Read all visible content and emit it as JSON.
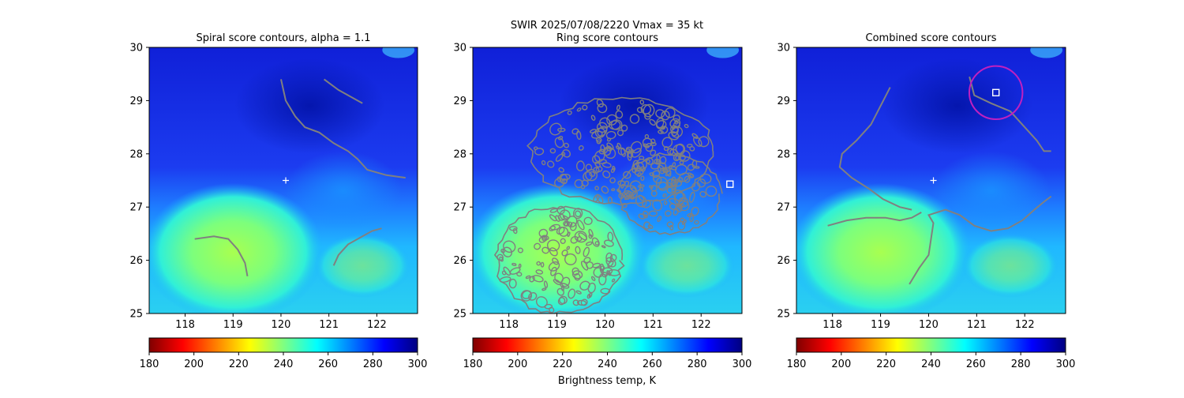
{
  "figure": {
    "suptitle_line1": "SWIR  2025/07/08/2220    Vmax = 35 kt",
    "colorbar_label": "Brightness temp, K"
  },
  "colorbar": {
    "ticks": [
      180,
      200,
      220,
      240,
      260,
      280,
      300
    ],
    "range": [
      180,
      300
    ],
    "colormap": "jet_r",
    "colors": [
      "#800000",
      "#ff0000",
      "#ff8000",
      "#ffff00",
      "#80ff80",
      "#00ffff",
      "#0080ff",
      "#0000ff",
      "#000080"
    ]
  },
  "colors": {
    "contour": "#808080",
    "marker": "#ffffff",
    "circle": "#c020c0"
  },
  "chart_data": [
    {
      "type": "heatmap",
      "title": "Spiral score contours, alpha =  1.1",
      "xlim": [
        117.25,
        122.85
      ],
      "ylim": [
        25,
        30
      ],
      "xticks": [
        118,
        119,
        120,
        121,
        122
      ],
      "yticks": [
        25,
        26,
        27,
        28,
        29,
        30
      ],
      "center_marker": {
        "x": 120.1,
        "y": 27.5,
        "symbol": "+"
      },
      "contours": [
        [
          [
            120.0,
            29.4
          ],
          [
            120.1,
            29.0
          ],
          [
            120.3,
            28.7
          ],
          [
            120.5,
            28.5
          ],
          [
            120.8,
            28.4
          ],
          [
            121.1,
            28.2
          ],
          [
            121.4,
            28.05
          ],
          [
            121.6,
            27.9
          ],
          [
            121.8,
            27.7
          ],
          [
            122.2,
            27.6
          ],
          [
            122.6,
            27.55
          ]
        ],
        [
          [
            120.9,
            29.4
          ],
          [
            121.2,
            29.2
          ],
          [
            121.5,
            29.05
          ],
          [
            121.7,
            28.95
          ]
        ],
        [
          [
            118.2,
            26.4
          ],
          [
            118.6,
            26.45
          ],
          [
            118.9,
            26.4
          ],
          [
            119.1,
            26.2
          ],
          [
            119.25,
            25.95
          ],
          [
            119.3,
            25.7
          ]
        ],
        [
          [
            121.1,
            25.9
          ],
          [
            121.2,
            26.1
          ],
          [
            121.4,
            26.3
          ],
          [
            121.7,
            26.45
          ],
          [
            121.9,
            26.55
          ],
          [
            122.1,
            26.6
          ]
        ]
      ]
    },
    {
      "type": "heatmap",
      "title": "Ring score contours",
      "xlim": [
        117.25,
        122.85
      ],
      "ylim": [
        25,
        30
      ],
      "xticks": [
        118,
        119,
        120,
        121,
        122
      ],
      "yticks": [
        25,
        26,
        27,
        28,
        29,
        30
      ],
      "square_marker": {
        "x": 122.6,
        "y": 27.43
      },
      "contour_blobs": [
        {
          "cx": 120.35,
          "cy": 28.05,
          "rx": 1.9,
          "ry": 1.0
        },
        {
          "cx": 121.35,
          "cy": 27.25,
          "rx": 1.05,
          "ry": 0.75
        },
        {
          "cx": 119.05,
          "cy": 26.0,
          "rx": 1.3,
          "ry": 1.0
        }
      ]
    },
    {
      "type": "heatmap",
      "title": "Combined score contours",
      "xlim": [
        117.25,
        122.85
      ],
      "ylim": [
        25,
        30
      ],
      "xticks": [
        118,
        119,
        120,
        121,
        122
      ],
      "yticks": [
        25,
        26,
        27,
        28,
        29,
        30
      ],
      "center_marker": {
        "x": 120.1,
        "y": 27.5,
        "symbol": "+"
      },
      "square_marker": {
        "x": 121.4,
        "y": 29.15
      },
      "circle": {
        "x": 121.4,
        "y": 29.15,
        "r": 0.5
      },
      "contours": [
        [
          [
            119.2,
            29.25
          ],
          [
            119.0,
            28.9
          ],
          [
            118.8,
            28.55
          ],
          [
            118.5,
            28.25
          ],
          [
            118.2,
            28.0
          ],
          [
            118.15,
            27.75
          ],
          [
            118.4,
            27.55
          ],
          [
            118.75,
            27.35
          ],
          [
            119.05,
            27.15
          ],
          [
            119.4,
            27.0
          ],
          [
            119.65,
            26.95
          ]
        ],
        [
          [
            117.9,
            26.65
          ],
          [
            118.3,
            26.75
          ],
          [
            118.7,
            26.8
          ],
          [
            119.1,
            26.8
          ],
          [
            119.4,
            26.75
          ],
          [
            119.65,
            26.8
          ],
          [
            119.85,
            26.9
          ]
        ],
        [
          [
            119.6,
            25.55
          ],
          [
            119.8,
            25.85
          ],
          [
            120.0,
            26.1
          ],
          [
            120.05,
            26.4
          ],
          [
            120.1,
            26.7
          ],
          [
            120.0,
            26.85
          ],
          [
            120.35,
            26.95
          ],
          [
            120.65,
            26.85
          ],
          [
            120.95,
            26.65
          ],
          [
            121.3,
            26.55
          ],
          [
            121.65,
            26.6
          ],
          [
            121.95,
            26.75
          ],
          [
            122.2,
            26.95
          ],
          [
            122.4,
            27.1
          ],
          [
            122.55,
            27.2
          ]
        ],
        [
          [
            120.85,
            29.45
          ],
          [
            120.95,
            29.1
          ],
          [
            121.3,
            28.95
          ],
          [
            121.7,
            28.8
          ],
          [
            122.0,
            28.5
          ],
          [
            122.25,
            28.25
          ],
          [
            122.4,
            28.05
          ],
          [
            122.55,
            28.05
          ]
        ]
      ]
    }
  ]
}
